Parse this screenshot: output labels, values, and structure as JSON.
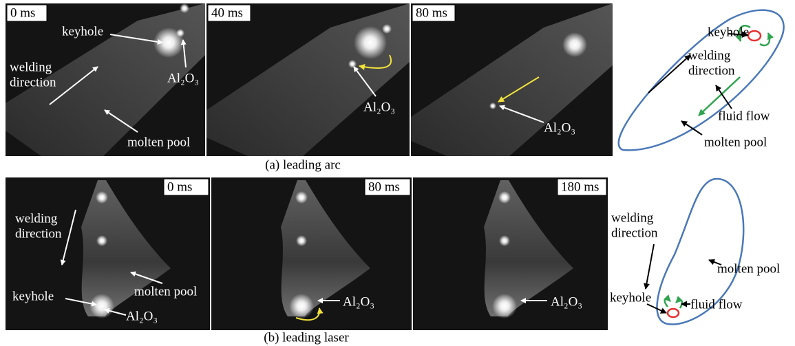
{
  "row_a": {
    "caption": "(a) leading arc",
    "frame_1": {
      "time": "0 ms",
      "keyhole": "keyhole",
      "direction": [
        "welding",
        "direction"
      ],
      "oxide": "Al₂O₃",
      "pool": "molten pool"
    },
    "frame_2": {
      "time": "40 ms",
      "oxide": "Al₂O₃"
    },
    "frame_3": {
      "time": "80 ms",
      "oxide": "Al₂O₃"
    },
    "schematic": {
      "keyhole": "keyhole",
      "direction": [
        "welding",
        "direction"
      ],
      "flow": "fluid flow",
      "pool": "molten pool"
    }
  },
  "row_b": {
    "caption": "(b) leading laser",
    "frame_1": {
      "time": "0 ms",
      "direction": [
        "welding",
        "direction"
      ],
      "pool": "molten pool",
      "keyhole": "keyhole",
      "oxide": "Al₂O₃"
    },
    "frame_2": {
      "time": "80 ms",
      "oxide": "Al₂O₃"
    },
    "frame_3": {
      "time": "180 ms",
      "oxide": "Al₂O₃"
    },
    "schematic": {
      "direction": [
        "welding",
        "direction"
      ],
      "pool": "molten pool",
      "keyhole": "keyhole",
      "flow": "fluid flow"
    }
  }
}
